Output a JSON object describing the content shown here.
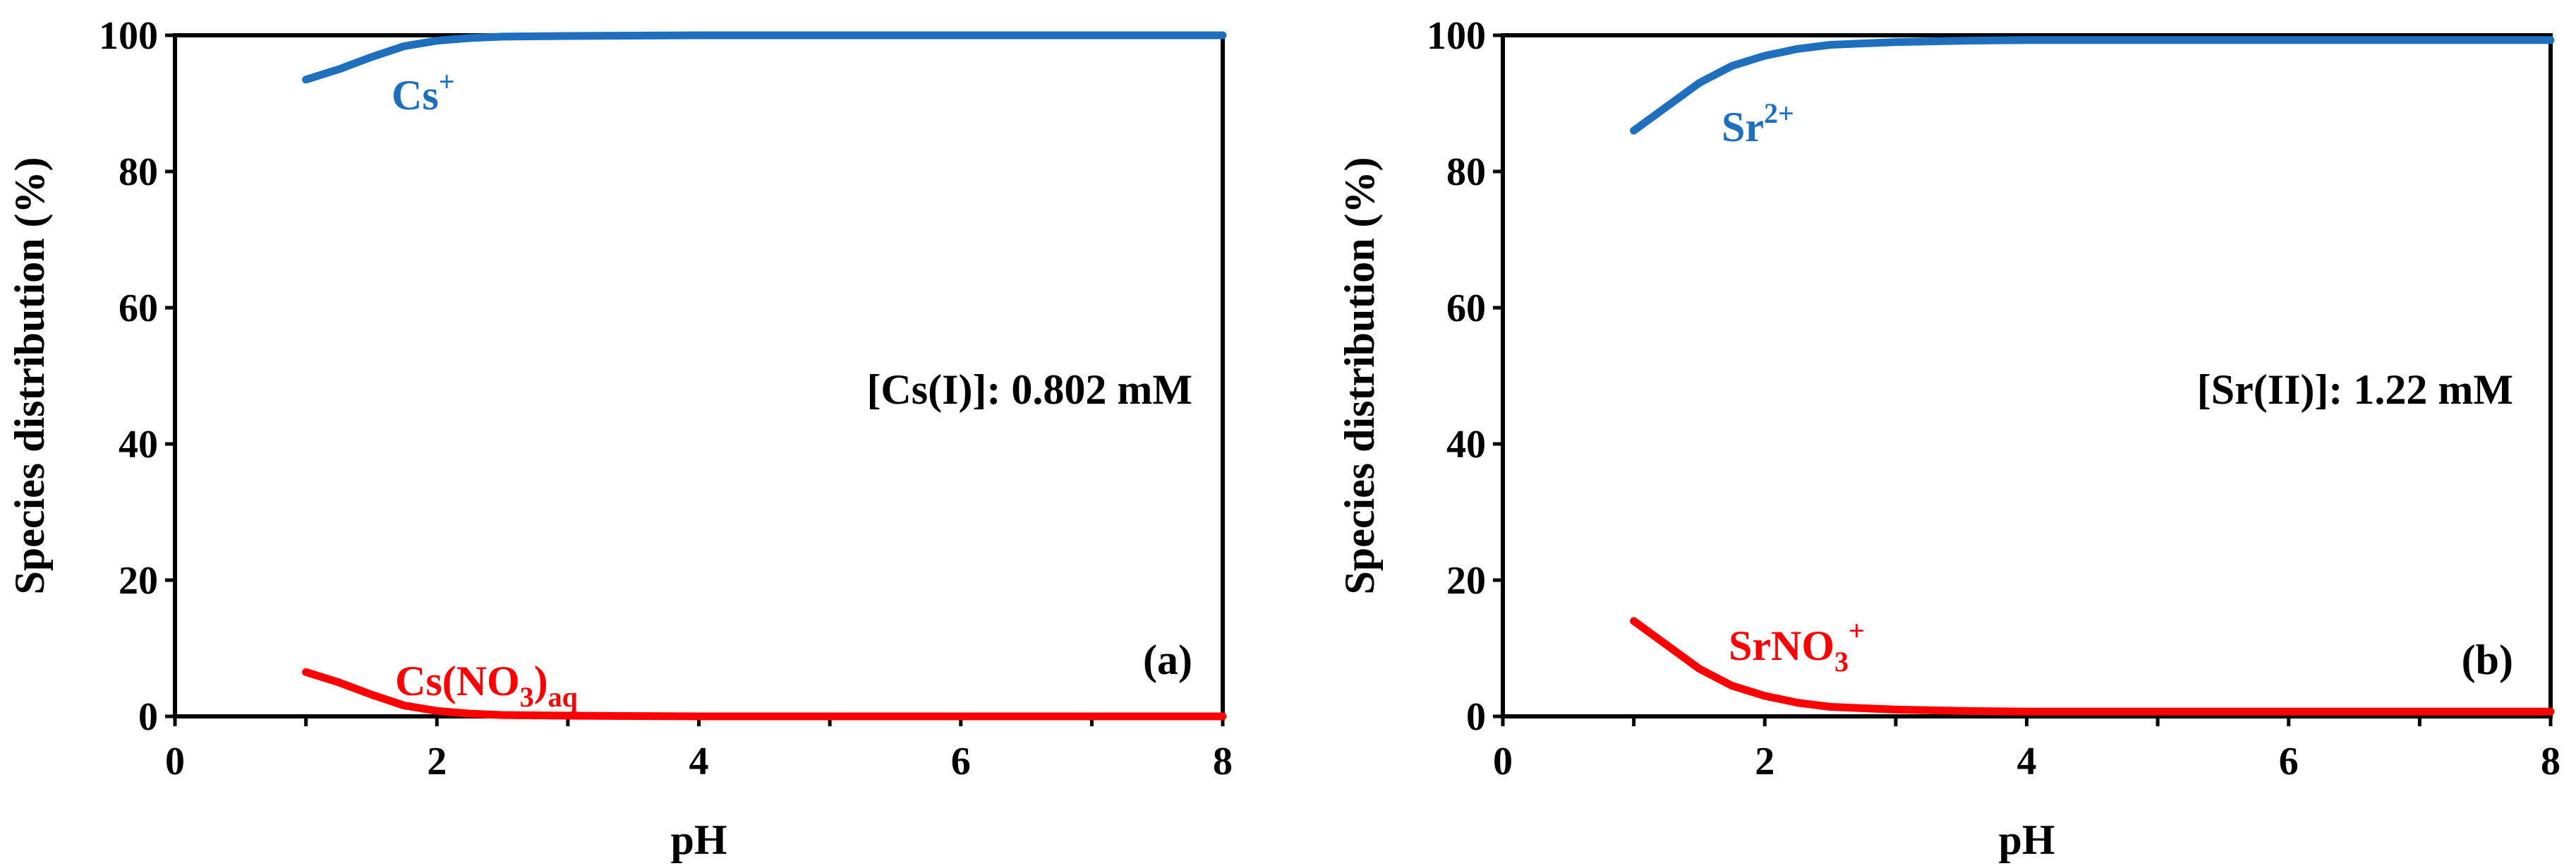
{
  "colors": {
    "blue": "#1f6fbf",
    "red": "#ff0000",
    "axis": "#000000"
  },
  "chart_data": [
    {
      "type": "line",
      "panel_label": "(a)",
      "annotation": "[Cs(I)]: 0.802 mM",
      "xlabel": "pH",
      "ylabel": "Species distribution (%)",
      "xlim": [
        0,
        8
      ],
      "ylim": [
        0,
        100
      ],
      "xticks": [
        "0",
        "2",
        "4",
        "6",
        "8"
      ],
      "yticks": [
        "0",
        "20",
        "40",
        "60",
        "80",
        "100"
      ],
      "series": [
        {
          "label": {
            "base": "Cs",
            "sub": "",
            "sup": "+"
          },
          "color": "blue",
          "x": [
            1.0,
            1.25,
            1.5,
            1.75,
            2.0,
            2.25,
            2.5,
            3.0,
            4.0,
            5.0,
            6.0,
            7.0,
            8.0
          ],
          "y": [
            93.5,
            95.0,
            96.8,
            98.4,
            99.2,
            99.6,
            99.8,
            99.9,
            100,
            100,
            100,
            100,
            100
          ]
        },
        {
          "label": {
            "base": "Cs(NO",
            "sub": "3",
            "rest": ")",
            "sub2": "aq",
            "sup": ""
          },
          "color": "red",
          "x": [
            1.0,
            1.25,
            1.5,
            1.75,
            2.0,
            2.25,
            2.5,
            3.0,
            4.0,
            5.0,
            6.0,
            7.0,
            8.0
          ],
          "y": [
            6.5,
            5.0,
            3.2,
            1.6,
            0.8,
            0.4,
            0.2,
            0.1,
            0,
            0,
            0,
            0,
            0
          ]
        }
      ]
    },
    {
      "type": "line",
      "panel_label": "(b)",
      "annotation": "[Sr(II)]: 1.22 mM",
      "xlabel": "pH",
      "ylabel": "Species distribution (%)",
      "xlim": [
        0,
        8
      ],
      "ylim": [
        0,
        100
      ],
      "xticks": [
        "0",
        "2",
        "4",
        "6",
        "8"
      ],
      "yticks": [
        "0",
        "20",
        "40",
        "60",
        "80",
        "100"
      ],
      "series": [
        {
          "label": {
            "base": "Sr",
            "sub": "",
            "sup": "2+"
          },
          "color": "blue",
          "x": [
            1.0,
            1.25,
            1.5,
            1.75,
            2.0,
            2.25,
            2.5,
            3.0,
            3.5,
            4.0,
            5.0,
            6.0,
            7.0,
            8.0
          ],
          "y": [
            86.0,
            89.5,
            93.0,
            95.5,
            97.0,
            98.0,
            98.6,
            99.0,
            99.2,
            99.3,
            99.3,
            99.3,
            99.3,
            99.3
          ]
        },
        {
          "label": {
            "base": "SrNO",
            "sub": "3",
            "sup": "+"
          },
          "color": "red",
          "x": [
            1.0,
            1.25,
            1.5,
            1.75,
            2.0,
            2.25,
            2.5,
            3.0,
            3.5,
            4.0,
            5.0,
            6.0,
            7.0,
            8.0
          ],
          "y": [
            14.0,
            10.5,
            7.0,
            4.5,
            3.0,
            2.0,
            1.4,
            1.0,
            0.8,
            0.7,
            0.7,
            0.7,
            0.7,
            0.7
          ]
        }
      ]
    }
  ]
}
